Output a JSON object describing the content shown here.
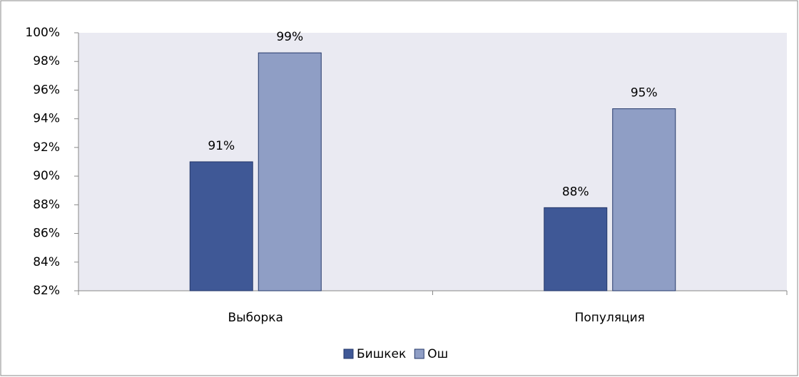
{
  "chart_data": {
    "type": "bar",
    "categories": [
      "Выборка",
      "Популяция"
    ],
    "series": [
      {
        "name": "Бишкек",
        "color": "#3f5896",
        "values": [
          91.0,
          87.8
        ],
        "value_labels": [
          "91%",
          "88%"
        ]
      },
      {
        "name": "Ош",
        "color": "#8f9ec5",
        "values": [
          98.6,
          94.7
        ],
        "value_labels": [
          "99%",
          "95%"
        ]
      }
    ],
    "ylim": [
      82,
      100
    ],
    "yticks": [
      {
        "value": 82,
        "label": "82%"
      },
      {
        "value": 84,
        "label": "84%"
      },
      {
        "value": 86,
        "label": "86%"
      },
      {
        "value": 88,
        "label": "88%"
      },
      {
        "value": 90,
        "label": "90%"
      },
      {
        "value": 92,
        "label": "92%"
      },
      {
        "value": 94,
        "label": "94%"
      },
      {
        "value": 96,
        "label": "96%"
      },
      {
        "value": 98,
        "label": "98%"
      },
      {
        "value": 100,
        "label": "100%"
      }
    ],
    "legend": "bottom"
  }
}
